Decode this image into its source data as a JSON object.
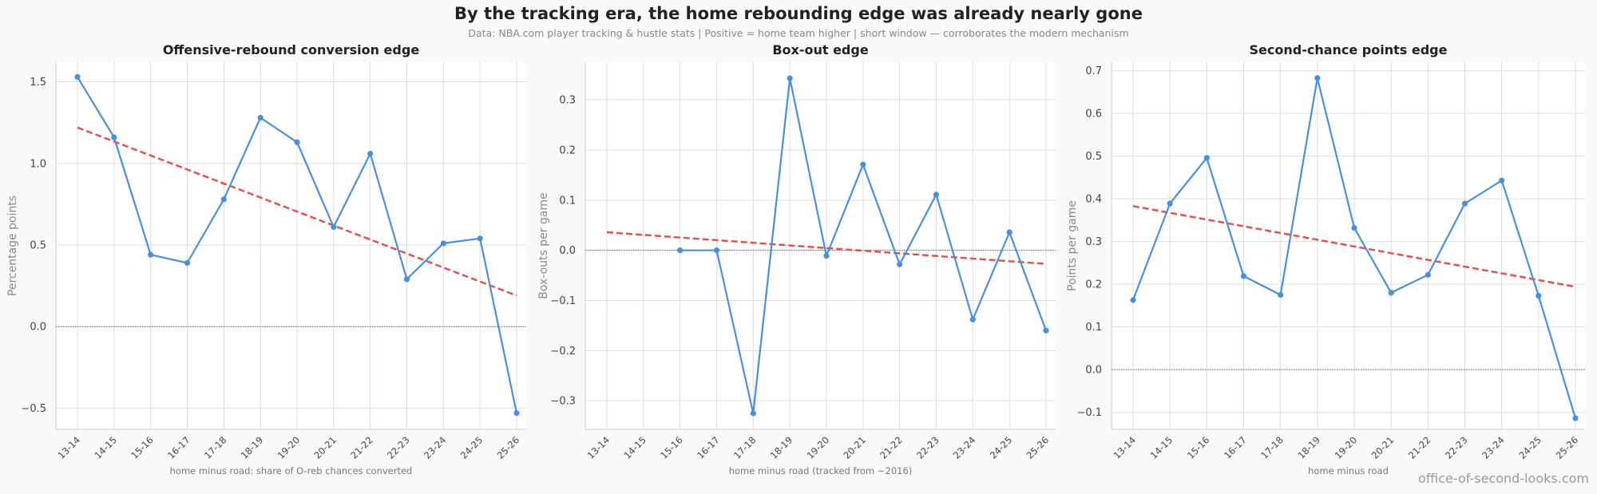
{
  "title": "By the tracking era, the home rebounding edge was already nearly gone",
  "subtitle": "Data: NBA.com player tracking & hustle stats  |  Positive = home team higher  |  short window — corroborates the modern mechanism",
  "watermark": "office-of-second-looks.com",
  "colors": {
    "series": "#4a90d9",
    "trend": "#e05252",
    "zero": "#666666",
    "grid": "#dddddd"
  },
  "chart_data": [
    {
      "type": "line",
      "title": "Offensive-rebound conversion edge",
      "ylabel": "Percentage points",
      "xlabel": "home minus road: share of O-reb chances converted",
      "categories": [
        "13-14",
        "14-15",
        "15-16",
        "16-17",
        "17-18",
        "18-19",
        "19-20",
        "20-21",
        "21-22",
        "22-23",
        "23-24",
        "24-25",
        "25-26"
      ],
      "ylim": [
        -0.63,
        1.62
      ],
      "yticks": [
        -0.5,
        0.0,
        0.5,
        1.0,
        1.5
      ],
      "ytick_labels": [
        "−0.5",
        "0.0",
        "0.5",
        "1.0",
        "1.5"
      ],
      "series": [
        {
          "values": [
            1.53,
            1.16,
            0.44,
            0.39,
            0.78,
            1.28,
            1.13,
            0.61,
            1.06,
            0.29,
            0.51,
            0.54,
            -0.53
          ]
        }
      ],
      "trend": {
        "start": 1.22,
        "end": 0.19
      },
      "zero_line": true,
      "grid": true
    },
    {
      "type": "line",
      "title": "Box-out edge",
      "ylabel": "Box-outs per game",
      "xlabel": "home minus road (tracked from ~2016)",
      "categories": [
        "13-14",
        "14-15",
        "15-16",
        "16-17",
        "17-18",
        "18-19",
        "19-20",
        "20-21",
        "21-22",
        "22-23",
        "23-24",
        "24-25",
        "25-26"
      ],
      "ylim": [
        -0.357,
        0.375
      ],
      "yticks": [
        -0.3,
        -0.2,
        -0.1,
        0.0,
        0.1,
        0.2,
        0.3
      ],
      "ytick_labels": [
        "−0.3",
        "−0.2",
        "−0.1",
        "0.0",
        "0.1",
        "0.2",
        "0.3"
      ],
      "series": [
        {
          "values": [
            null,
            null,
            0.0,
            0.0,
            -0.325,
            0.343,
            -0.011,
            0.171,
            -0.028,
            0.111,
            -0.138,
            0.036,
            -0.16
          ]
        }
      ],
      "trend": {
        "start": 0.036,
        "end": -0.027
      },
      "zero_line": true,
      "grid": true
    },
    {
      "type": "line",
      "title": "Second-chance points edge",
      "ylabel": "Points per game",
      "xlabel": "home minus road",
      "categories": [
        "13-14",
        "14-15",
        "15-16",
        "16-17",
        "17-18",
        "18-19",
        "19-20",
        "20-21",
        "21-22",
        "22-23",
        "23-24",
        "24-25",
        "25-26"
      ],
      "ylim": [
        -0.14,
        0.72
      ],
      "yticks": [
        -0.1,
        0.0,
        0.1,
        0.2,
        0.3,
        0.4,
        0.5,
        0.6,
        0.7
      ],
      "ytick_labels": [
        "−0.1",
        "0.0",
        "0.1",
        "0.2",
        "0.3",
        "0.4",
        "0.5",
        "0.6",
        "0.7"
      ],
      "series": [
        {
          "values": [
            0.163,
            0.389,
            0.496,
            0.219,
            0.175,
            0.683,
            0.332,
            0.18,
            0.222,
            0.389,
            0.443,
            0.173,
            -0.114
          ]
        }
      ],
      "trend": {
        "start": 0.383,
        "end": 0.194
      },
      "zero_line": true,
      "grid": true
    }
  ]
}
